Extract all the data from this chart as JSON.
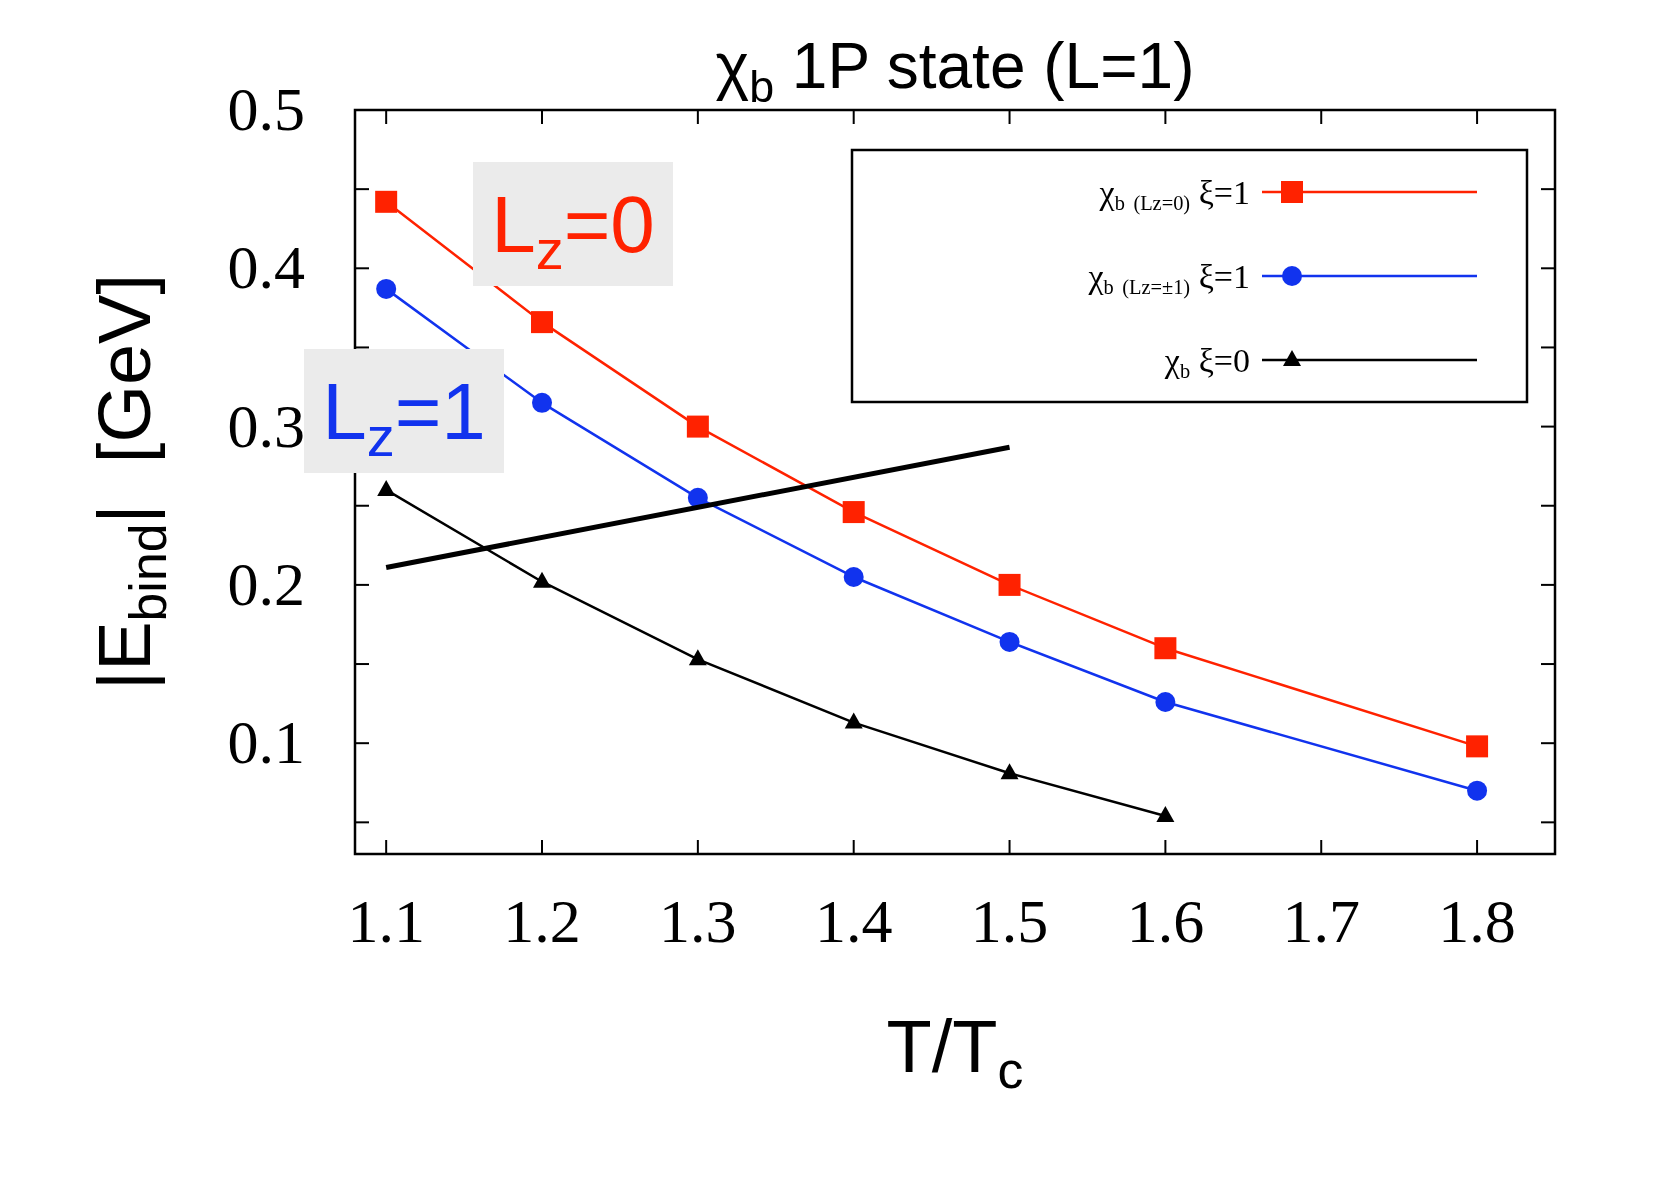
{
  "chart_data": {
    "type": "line",
    "title": "χ$_{b}$ 1P state (L=1)",
    "xlabel": "T/T$_{c}$",
    "ylabel": "|E$_{bind}$|  [GeV]",
    "xlim": [
      1.08,
      1.85
    ],
    "ylim": [
      0.03,
      0.5
    ],
    "xticks": [
      1.1,
      1.2,
      1.3,
      1.4,
      1.5,
      1.6,
      1.7,
      1.8
    ],
    "yticks": [
      {
        "value": 0.05,
        "label": null
      },
      0.1,
      {
        "value": 0.15,
        "label": null
      },
      0.2,
      {
        "value": 0.25,
        "label": null
      },
      0.3,
      {
        "value": 0.35,
        "label": null
      },
      0.4,
      {
        "value": 0.45,
        "label": null
      },
      0.5
    ],
    "legend": "top right",
    "line_style": "solid",
    "grid": false,
    "series": [
      {
        "name": "χ$_{b}$ $_{(Lz=0)}$ ξ=1",
        "color": "#ff2200",
        "marker": "square",
        "x": [
          1.1,
          1.2,
          1.3,
          1.4,
          1.5,
          1.6,
          1.8
        ],
        "values": [
          0.442,
          0.366,
          0.3,
          0.246,
          0.2,
          0.16,
          0.098
        ]
      },
      {
        "name": "χ$_{b}$ $_{(Lz=±1)}$ ξ=1",
        "color": "#1133ee",
        "marker": "circle",
        "x": [
          1.1,
          1.2,
          1.3,
          1.4,
          1.5,
          1.6,
          1.8
        ],
        "values": [
          0.387,
          0.315,
          0.255,
          0.205,
          0.164,
          0.126,
          0.07
        ]
      },
      {
        "name": "χ$_{b}$ ξ=0",
        "color": "#000000",
        "marker": "triangle",
        "x": [
          1.1,
          1.2,
          1.3,
          1.4,
          1.5,
          1.6
        ],
        "values": [
          0.26,
          0.202,
          0.153,
          0.113,
          0.081,
          0.054
        ]
      },
      {
        "color": "#000000",
        "marker": "none",
        "x": [
          1.1,
          1.5
        ],
        "values": [
          0.211,
          0.287
        ]
      }
    ],
    "annotations": [
      "L$_{z}$=0",
      "L$_{z}$=1"
    ]
  }
}
